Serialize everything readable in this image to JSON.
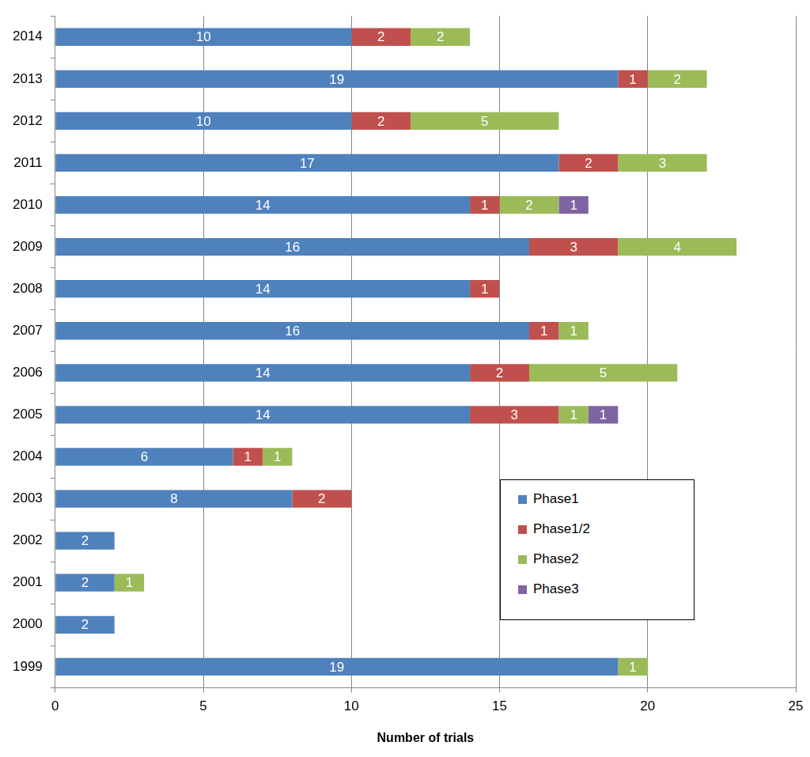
{
  "chart_data": {
    "type": "bar",
    "orientation": "horizontal",
    "stacked": true,
    "data_labels": true,
    "grid": true,
    "legend": "lower right",
    "x_label": "Number of trials",
    "categories": [
      "2014",
      "2013",
      "2012",
      "2011",
      "2010",
      "2009",
      "2008",
      "2007",
      "2006",
      "2005",
      "2004",
      "2003",
      "2002",
      "2001",
      "2000",
      "1999"
    ],
    "series": [
      {
        "name": "Phase1",
        "color": "#4f81bd",
        "values": [
          10,
          19,
          10,
          17,
          14,
          16,
          14,
          16,
          14,
          14,
          6,
          8,
          2,
          2,
          2,
          19
        ]
      },
      {
        "name": "Phase1/2",
        "color": "#c0504d",
        "values": [
          2,
          1,
          2,
          2,
          1,
          3,
          1,
          1,
          2,
          3,
          1,
          2,
          null,
          null,
          null,
          null
        ]
      },
      {
        "name": "Phase2",
        "color": "#9bbb59",
        "values": [
          2,
          2,
          5,
          3,
          2,
          4,
          null,
          1,
          5,
          1,
          1,
          null,
          null,
          1,
          null,
          1
        ]
      },
      {
        "name": "Phase3",
        "color": "#8064a2",
        "values": [
          null,
          null,
          null,
          null,
          1,
          null,
          null,
          null,
          null,
          1,
          null,
          null,
          null,
          null,
          null,
          null
        ]
      }
    ],
    "xlim": [
      0,
      25
    ],
    "xticks": [
      0,
      5,
      10,
      15,
      20,
      25
    ]
  }
}
